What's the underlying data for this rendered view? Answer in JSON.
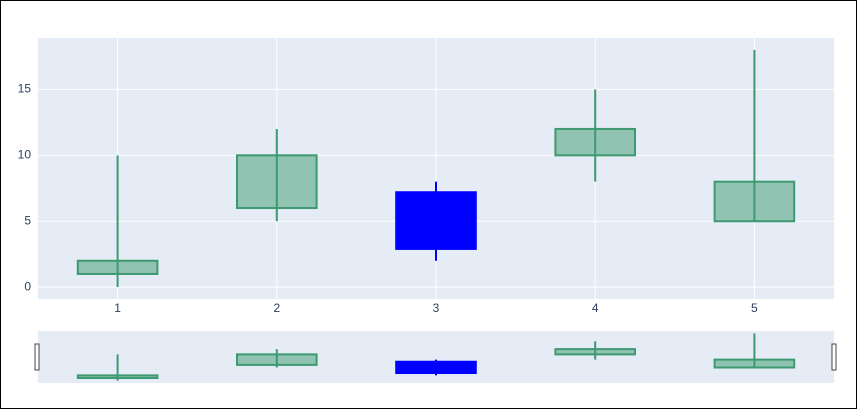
{
  "chart_data": {
    "type": "candlestick",
    "x": [
      1,
      2,
      3,
      4,
      5
    ],
    "open": [
      1,
      6,
      7.2,
      10,
      5
    ],
    "high": [
      10,
      12,
      8,
      15,
      18
    ],
    "low": [
      0,
      5,
      2,
      8,
      5
    ],
    "close": [
      2,
      10,
      2.9,
      12,
      8
    ],
    "increasing_color": "#3d9970",
    "decreasing_color": "#0000ff",
    "xlim": [
      0.5,
      5.5
    ],
    "xticks": [
      1,
      2,
      3,
      4,
      5
    ],
    "ylim": [
      -0.9,
      18.9
    ],
    "yticks": [
      0,
      5,
      10,
      15
    ],
    "grid": true,
    "rangeslider": true
  }
}
